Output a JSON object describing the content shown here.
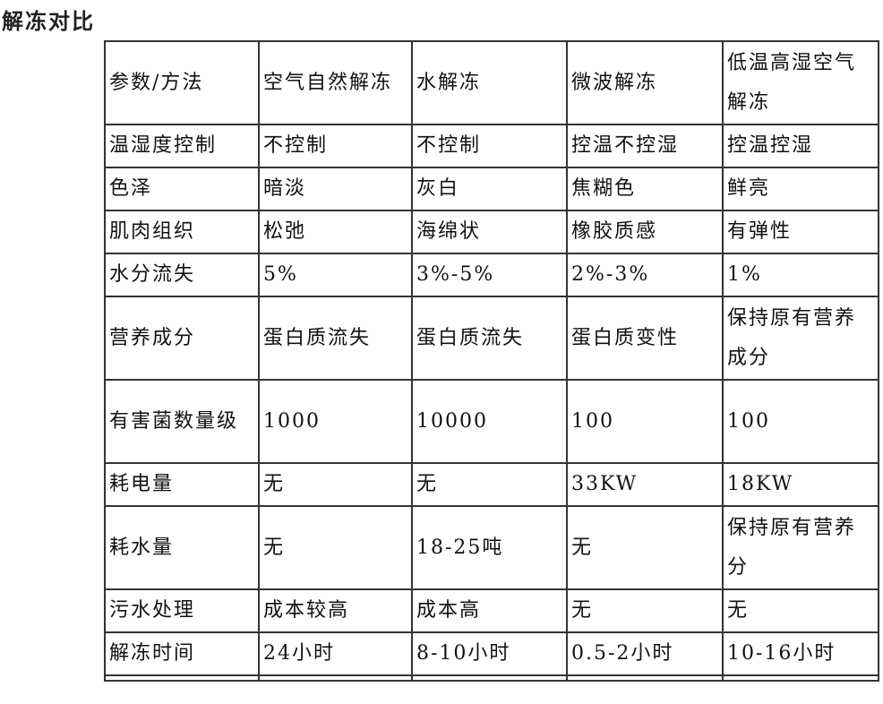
{
  "title": "解冻对比",
  "table": {
    "header": [
      "参数/方法",
      "空气自然解冻",
      "水解冻",
      "微波解冻",
      "低温高湿空气解冻"
    ],
    "rows": [
      [
        "温湿度控制",
        "不控制",
        "不控制",
        "控温不控湿",
        "控温控湿"
      ],
      [
        "色泽",
        "暗淡",
        "灰白",
        "焦糊色",
        "鲜亮"
      ],
      [
        "肌肉组织",
        "松弛",
        "海绵状",
        "橡胶质感",
        "有弹性"
      ],
      [
        "水分流失",
        "5%",
        "3%-5%",
        "2%-3%",
        "1%"
      ],
      [
        "营养成分",
        "蛋白质流失",
        "蛋白质流失",
        "蛋白质变性",
        "保持原有营养成分"
      ],
      [
        "有害菌数量级",
        "1000",
        "10000",
        "100",
        "100"
      ],
      [
        "耗电量",
        "无",
        "无",
        "33KW",
        "18KW"
      ],
      [
        "耗水量",
        "无",
        "18-25吨",
        "无",
        "保持原有营养分"
      ],
      [
        "污水处理",
        "成本较高",
        "成本高",
        "无",
        "无"
      ],
      [
        "解冻时间",
        "24小时",
        "8-10小时",
        "0.5-2小时",
        "10-16小时"
      ]
    ]
  }
}
